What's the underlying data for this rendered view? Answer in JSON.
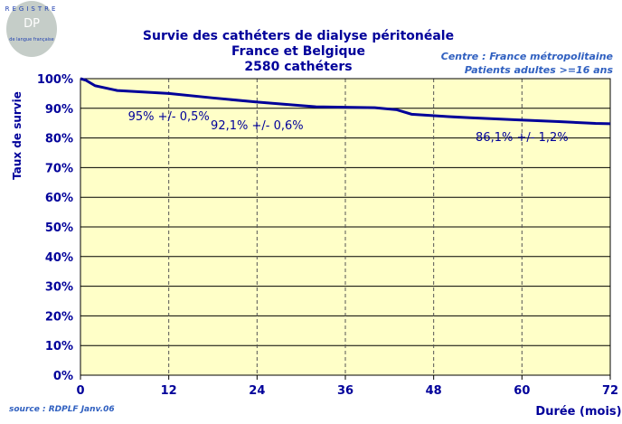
{
  "logo": {
    "text_arc": "REGISTRE",
    "initials": "DP",
    "subtitle": "de langue française"
  },
  "source": "source : RDPLF  Janv.06",
  "centre_note": [
    "Centre : France métropolitaine",
    "Patients adultes >=16 ans"
  ],
  "chart_data": {
    "type": "line",
    "title": [
      "Survie des cathéters de dialyse péritonéale",
      "France et Belgique",
      "2580 cathéters"
    ],
    "xlabel": "Durée (mois)",
    "ylabel": "Taux de survie",
    "xlim": [
      0,
      72
    ],
    "ylim": [
      0,
      100
    ],
    "xticks": [
      "0",
      "12",
      "24",
      "36",
      "48",
      "60",
      "72"
    ],
    "yticks": [
      "0%",
      "10%",
      "20%",
      "30%",
      "40%",
      "50%",
      "60%",
      "70%",
      "80%",
      "90%",
      "100%"
    ],
    "grid": "horizontal solid, vertical dashed",
    "series": [
      {
        "name": "Survie",
        "color": "#000099",
        "x": [
          0,
          0.7,
          2,
          5,
          12,
          18,
          24,
          32,
          40,
          43,
          45,
          50,
          53,
          59.5,
          65,
          70,
          72
        ],
        "y": [
          100,
          99.5,
          97.6,
          96,
          95,
          93.5,
          92.1,
          90.5,
          90.2,
          89.5,
          88,
          87.2,
          86.8,
          86.1,
          85.5,
          84.9,
          84.8
        ]
      }
    ],
    "annotations": [
      {
        "text": "95% +/- 0,5%",
        "x": 12,
        "y": 87.5
      },
      {
        "text": "92,1% +/- 0,6%",
        "x": 24,
        "y": 84.5
      },
      {
        "text": "86,1% +/- 1,2%",
        "x": 60,
        "y": 80.5
      }
    ]
  }
}
